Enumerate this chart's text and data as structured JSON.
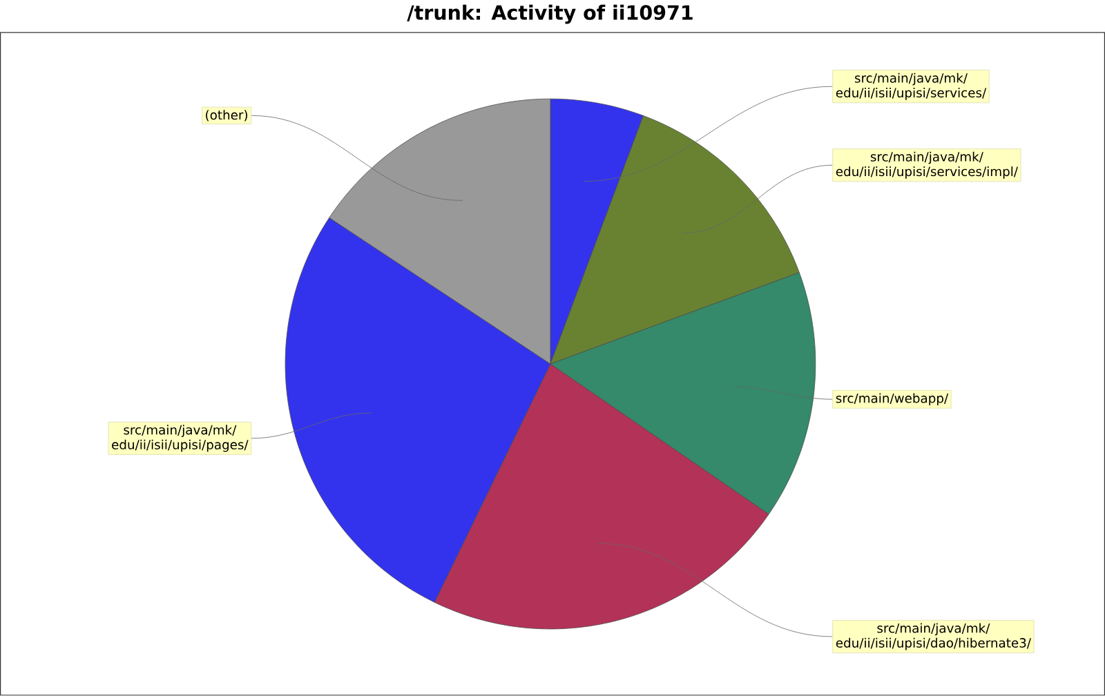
{
  "chart_data": {
    "type": "pie",
    "title": "/trunk: Activity of ii10971",
    "categories": [
      "src/main/java/mk/ edu/ii/isii/upisi/services/",
      "src/main/java/mk/ edu/ii/isii/upisi/services/impl/",
      "src/main/webapp/",
      "src/main/java/mk/ edu/ii/isii/upisi/dao/hibernate3/",
      "src/main/java/mk/ edu/ii/isii/upisi/pages/",
      "(other)"
    ],
    "values": [
      5.7,
      13.7,
      15.2,
      22.6,
      27.1,
      15.7
    ],
    "colors": [
      "#3333ee",
      "#688232",
      "#348a6a",
      "#b33258",
      "#3333ee",
      "#999999"
    ]
  }
}
